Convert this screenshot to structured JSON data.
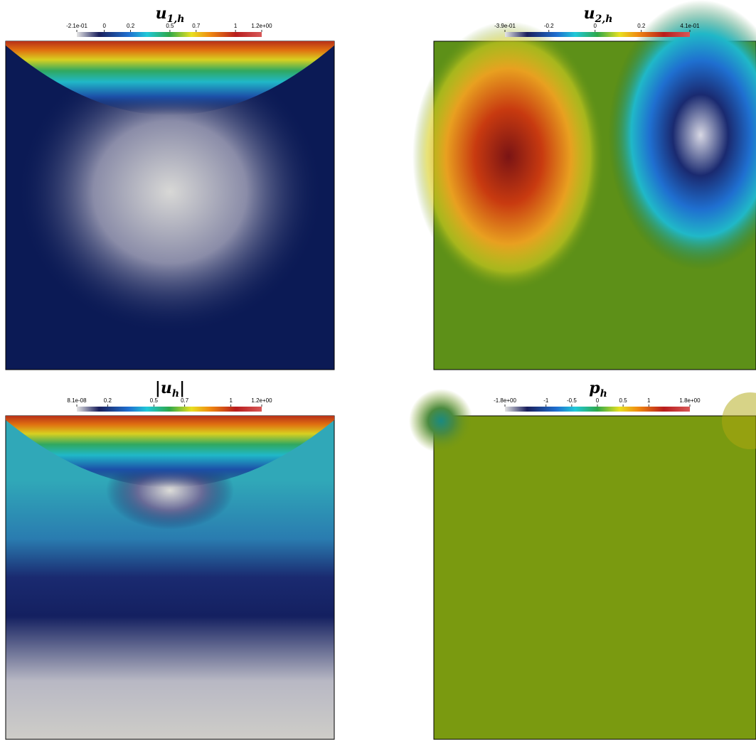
{
  "panels": [
    {
      "title": "u",
      "subscript": "1,h",
      "colorbar": {
        "range": [
          -0.21,
          1.2
        ],
        "ticks": [
          {
            "value": -0.21,
            "label": "-2.1e-01"
          },
          0,
          0.2,
          0.5,
          0.7,
          1,
          {
            "value": 1.2,
            "label": "1.2e+00"
          }
        ]
      }
    },
    {
      "title": "u",
      "subscript": "2,h",
      "colorbar": {
        "range": [
          -0.39,
          0.41
        ],
        "ticks": [
          {
            "value": -0.39,
            "label": "-3.9e-01"
          },
          -0.2,
          0,
          0.2,
          {
            "value": 0.41,
            "label": "4.1e-01"
          }
        ]
      }
    },
    {
      "title": "|u",
      "subscript": "h",
      "suffix": "|",
      "colorbar": {
        "range": [
          8.1e-08,
          1.2
        ],
        "ticks": [
          {
            "value": 8.1e-08,
            "label": "8.1e-08"
          },
          0.2,
          0.5,
          0.7,
          1,
          {
            "value": 1.2,
            "label": "1.2e+00"
          }
        ]
      }
    },
    {
      "title": "p",
      "subscript": "h",
      "colorbar": {
        "range": [
          -1.8,
          1.8
        ],
        "ticks": [
          {
            "value": -1.8,
            "label": "-1.8e+00"
          },
          -1,
          -0.5,
          0,
          0.5,
          1,
          {
            "value": 1.8,
            "label": "1.8e+00"
          }
        ]
      }
    }
  ]
}
